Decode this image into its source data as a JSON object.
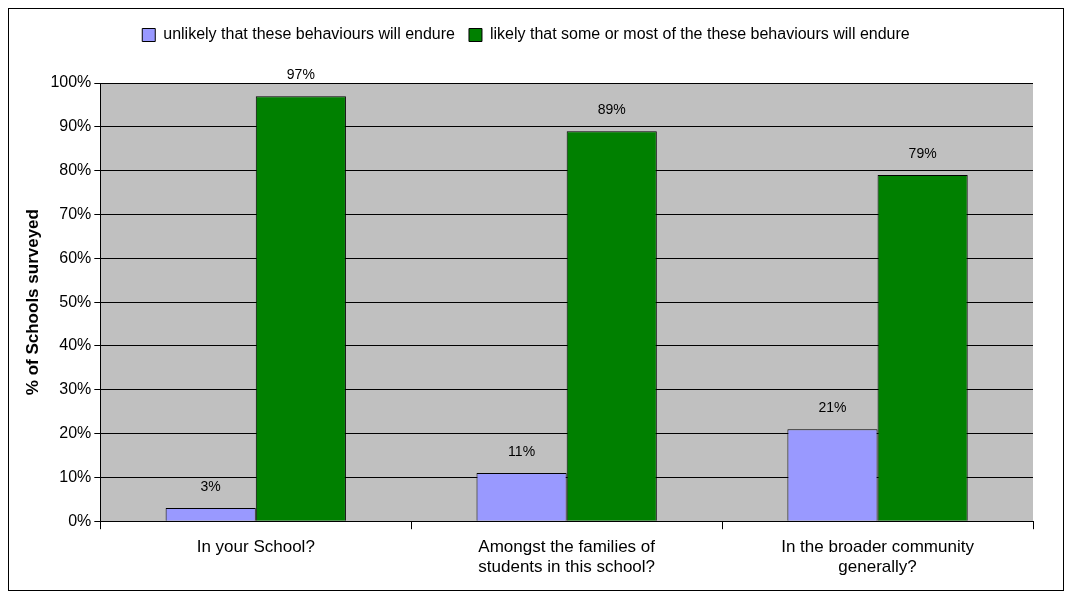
{
  "chart_data": {
    "type": "bar",
    "ylabel": "% of Schools surveyed",
    "categories": [
      "In your School?",
      "Amongst the families of students in this school?",
      "In the broader community generally?"
    ],
    "series": [
      {
        "name": "unlikely that these behaviours will endure",
        "color": "#9999ff",
        "values": [
          3,
          11,
          21
        ]
      },
      {
        "name": "likely that some or most of the these behaviours will endure",
        "color": "#008000",
        "values": [
          97,
          89,
          79
        ]
      }
    ],
    "ylim": [
      0,
      100
    ],
    "yticks": [
      {
        "value": 0,
        "label": "0%"
      },
      {
        "value": 10,
        "label": "10%"
      },
      {
        "value": 20,
        "label": "20%"
      },
      {
        "value": 30,
        "label": "30%"
      },
      {
        "value": 40,
        "label": "40%"
      },
      {
        "value": 50,
        "label": "50%"
      },
      {
        "value": 60,
        "label": "60%"
      },
      {
        "value": 70,
        "label": "70%"
      },
      {
        "value": 80,
        "label": "80%"
      },
      {
        "value": 90,
        "label": "90%"
      },
      {
        "value": 100,
        "label": "100%"
      }
    ],
    "value_labels": [
      [
        "3%",
        "11%",
        "21%"
      ],
      [
        "97%",
        "89%",
        "79%"
      ]
    ],
    "grid": "y",
    "legend": "top"
  }
}
